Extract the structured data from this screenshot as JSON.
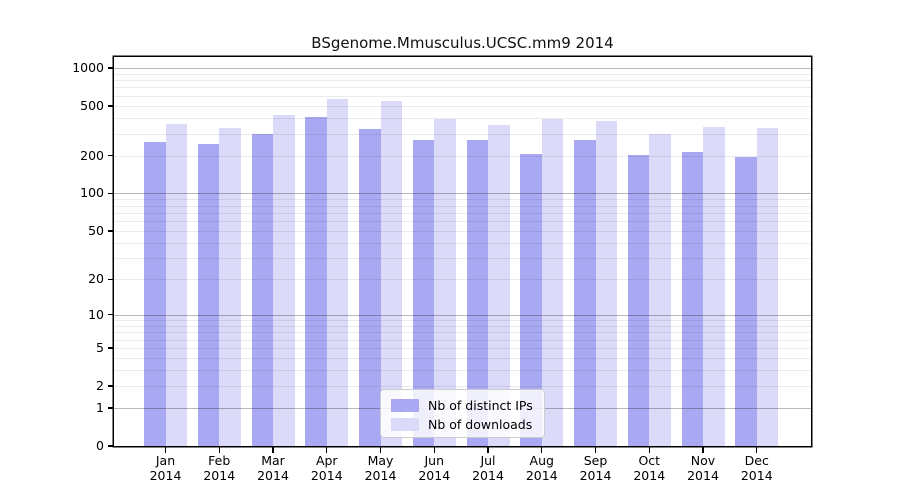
{
  "chart_data": {
    "type": "bar",
    "title": "BSgenome.Mmusculus.UCSC.mm9 2014",
    "y_scale": "log1p",
    "ylim": [
      0,
      1250
    ],
    "grid": "on",
    "legend_position": "lower-center",
    "x_year": "2014",
    "categories": [
      "Jan",
      "Feb",
      "Mar",
      "Apr",
      "May",
      "Jun",
      "Jul",
      "Aug",
      "Sep",
      "Oct",
      "Nov",
      "Dec"
    ],
    "series": [
      {
        "name": "Nb of distinct IPs",
        "color": "#a9a9f3",
        "values": [
          260,
          250,
          300,
          405,
          330,
          265,
          268,
          207,
          268,
          204,
          214,
          194
        ]
      },
      {
        "name": "Nb of downloads",
        "color": "#dbdbf9",
        "values": [
          360,
          335,
          425,
          570,
          550,
          390,
          353,
          394,
          377,
          300,
          337,
          333
        ]
      }
    ],
    "y_ticks": [
      0,
      1,
      2,
      5,
      10,
      20,
      50,
      100,
      200,
      500,
      1000
    ],
    "gridlines": {
      "major": [
        1,
        10,
        100,
        1000
      ],
      "minor": [
        2,
        3,
        4,
        5,
        6,
        7,
        8,
        9,
        20,
        30,
        40,
        50,
        60,
        70,
        80,
        90,
        200,
        300,
        400,
        500,
        600,
        700,
        800,
        900
      ]
    }
  },
  "colors": {
    "frame": "#000000",
    "major_grid": "#b8b8b8",
    "minor_grid": "#ececec",
    "legend_border": "#cccccc"
  }
}
